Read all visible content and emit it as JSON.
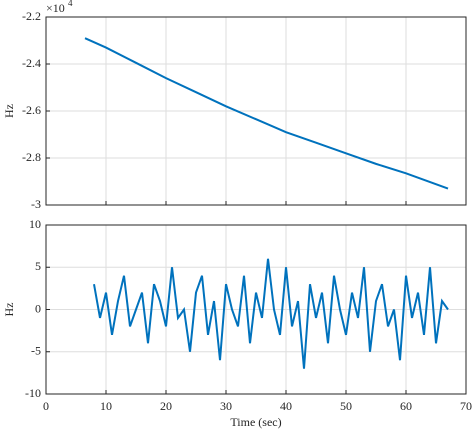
{
  "chart_data": [
    {
      "type": "line",
      "ylabel": "Hz",
      "y_multiplier_base": "×10",
      "y_multiplier_exponent": 4,
      "x": [
        6.5,
        10,
        15,
        20,
        25,
        30,
        35,
        40,
        45,
        50,
        55,
        60,
        67
      ],
      "values": [
        -2.29,
        -2.33,
        -2.395,
        -2.46,
        -2.52,
        -2.58,
        -2.635,
        -2.69,
        -2.735,
        -2.78,
        -2.825,
        -2.865,
        -2.93
      ],
      "color": "#0072bd",
      "xlim": [
        0,
        70
      ],
      "xticks": [
        0,
        10,
        20,
        30,
        40,
        50,
        60,
        70
      ],
      "ylim": [
        -3,
        -2.2
      ],
      "yticks": [
        -3,
        -2.8,
        -2.6,
        -2.4,
        -2.2
      ],
      "grid": true
    },
    {
      "type": "line",
      "ylabel": "Hz",
      "xlabel": "Time (sec)",
      "x": [
        8,
        9,
        10,
        11,
        12,
        13,
        14,
        15,
        16,
        17,
        18,
        19,
        20,
        21,
        22,
        23,
        24,
        25,
        26,
        27,
        28,
        29,
        30,
        31,
        32,
        33,
        34,
        35,
        36,
        37,
        38,
        39,
        40,
        41,
        42,
        43,
        44,
        45,
        46,
        47,
        48,
        49,
        50,
        51,
        52,
        53,
        54,
        55,
        56,
        57,
        58,
        59,
        60,
        61,
        62,
        63,
        64,
        65,
        66,
        67
      ],
      "values": [
        3,
        -1,
        2,
        -3,
        1,
        4,
        -2,
        0,
        2,
        -4,
        3,
        1,
        -2,
        5,
        -1,
        0,
        -5,
        2,
        4,
        -3,
        1,
        -6,
        3,
        0,
        -2,
        4,
        -4,
        2,
        -1,
        6,
        0,
        -3,
        5,
        -2,
        1,
        -7,
        3,
        -1,
        2,
        -4,
        4,
        0,
        -3,
        2,
        -1,
        5,
        -5,
        1,
        3,
        -2,
        0,
        -6,
        4,
        -1,
        2,
        -3,
        5,
        -4,
        1,
        0
      ],
      "color": "#0072bd",
      "xlim": [
        0,
        70
      ],
      "xticks": [
        0,
        10,
        20,
        30,
        40,
        50,
        60,
        70
      ],
      "ylim": [
        -10,
        10
      ],
      "yticks": [
        -10,
        -5,
        0,
        5,
        10
      ],
      "grid": true
    }
  ]
}
